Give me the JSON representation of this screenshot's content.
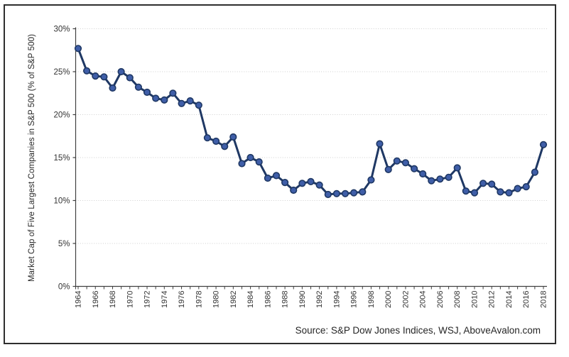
{
  "figure": {
    "kind": "line-chart-screenshot",
    "background_color": "#ffffff",
    "frame_border_color": "#2e2e2e"
  },
  "source_note": "Source: S&P Dow Jones Indices, WSJ, AboveAvalon.com",
  "chart_data": {
    "type": "line",
    "title": "",
    "xlabel": "",
    "ylabel": "Market Cap of Five Largest Companies in S&P 500 (% of S&P 500)",
    "series_name": "Market cap of five largest companies as % of S&P 500",
    "x": [
      1964,
      1965,
      1966,
      1967,
      1968,
      1969,
      1970,
      1971,
      1972,
      1973,
      1974,
      1975,
      1976,
      1977,
      1978,
      1979,
      1980,
      1981,
      1982,
      1983,
      1984,
      1985,
      1986,
      1987,
      1988,
      1989,
      1990,
      1991,
      1992,
      1993,
      1994,
      1995,
      1996,
      1997,
      1998,
      1999,
      2000,
      2001,
      2002,
      2003,
      2004,
      2005,
      2006,
      2007,
      2008,
      2009,
      2010,
      2011,
      2012,
      2013,
      2014,
      2015,
      2016,
      2017,
      2018
    ],
    "values": [
      27.7,
      25.1,
      24.5,
      24.4,
      23.1,
      25.0,
      24.3,
      23.2,
      22.6,
      21.9,
      21.7,
      22.5,
      21.3,
      21.6,
      21.1,
      17.3,
      16.9,
      16.3,
      17.4,
      14.3,
      15.0,
      14.5,
      12.6,
      12.9,
      12.1,
      11.2,
      12.0,
      12.2,
      11.8,
      10.7,
      10.8,
      10.8,
      10.9,
      11.0,
      12.4,
      16.6,
      13.6,
      14.6,
      14.4,
      13.7,
      13.1,
      12.3,
      12.5,
      12.7,
      13.8,
      11.1,
      10.9,
      12.0,
      11.9,
      11.0,
      10.9,
      11.4,
      11.6,
      13.3,
      16.5
    ],
    "ylim": [
      0,
      30
    ],
    "ytick_step": 5,
    "ytick_labels": [
      "0%",
      "5%",
      "10%",
      "15%",
      "20%",
      "25%",
      "30%"
    ],
    "xtick_label_every": 2,
    "xtick_labels": [
      "1964",
      "1966",
      "1968",
      "1970",
      "1972",
      "1974",
      "1976",
      "1978",
      "1980",
      "1982",
      "1984",
      "1986",
      "1988",
      "1990",
      "1992",
      "1994",
      "1996",
      "1998",
      "2000",
      "2002",
      "2004",
      "2006",
      "2008",
      "2010",
      "2012",
      "2014",
      "2016",
      "2018"
    ],
    "grid": "horizontal-dotted",
    "legend": "none",
    "line_color": "#1F3864",
    "marker_fill": "#3F5EA8",
    "marker_stroke": "#1F3864",
    "grid_color": "#cfcfcf",
    "axis_color": "#404040",
    "tick_label_color": "#333333"
  }
}
